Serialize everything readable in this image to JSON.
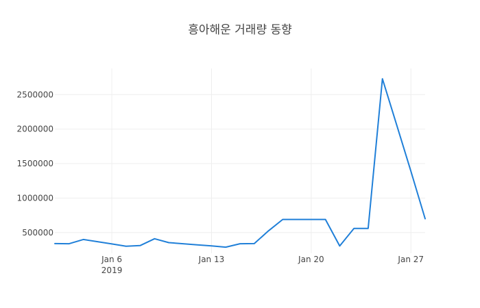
{
  "chart_data": {
    "type": "line",
    "title": "흥아해운 거래량 동향",
    "xlabel": "",
    "ylabel": "",
    "x_start": "2019-01-02",
    "x_end": "2019-01-28",
    "ylim": [
      200000,
      2880000
    ],
    "y_ticks": [
      500000,
      1000000,
      1500000,
      2000000,
      2500000
    ],
    "y_tick_labels": [
      "500000",
      "1000000",
      "1500000",
      "2000000",
      "2500000"
    ],
    "x_ticks": [
      {
        "date": "2019-01-06",
        "label": "Jan 6",
        "sublabel": "2019"
      },
      {
        "date": "2019-01-13",
        "label": "Jan 13",
        "sublabel": ""
      },
      {
        "date": "2019-01-20",
        "label": "Jan 20",
        "sublabel": ""
      },
      {
        "date": "2019-01-27",
        "label": "Jan 27",
        "sublabel": ""
      }
    ],
    "grid": true,
    "series": [
      {
        "color": "#1f7fd8",
        "points": [
          {
            "x": "2019-01-02",
            "y": 340000
          },
          {
            "x": "2019-01-03",
            "y": 338000
          },
          {
            "x": "2019-01-04",
            "y": 400000
          },
          {
            "x": "2019-01-05",
            "y": 368000
          },
          {
            "x": "2019-01-06",
            "y": 335000
          },
          {
            "x": "2019-01-07",
            "y": 302000
          },
          {
            "x": "2019-01-08",
            "y": 312000
          },
          {
            "x": "2019-01-09",
            "y": 410000
          },
          {
            "x": "2019-01-10",
            "y": 354000
          },
          {
            "x": "2019-01-11",
            "y": 338000
          },
          {
            "x": "2019-01-12",
            "y": 322000
          },
          {
            "x": "2019-01-13",
            "y": 306000
          },
          {
            "x": "2019-01-14",
            "y": 288000
          },
          {
            "x": "2019-01-15",
            "y": 338000
          },
          {
            "x": "2019-01-16",
            "y": 340000
          },
          {
            "x": "2019-01-17",
            "y": 525000
          },
          {
            "x": "2019-01-18",
            "y": 690000
          },
          {
            "x": "2019-01-19",
            "y": 690000
          },
          {
            "x": "2019-01-20",
            "y": 690000
          },
          {
            "x": "2019-01-21",
            "y": 690000
          },
          {
            "x": "2019-01-22",
            "y": 305000
          },
          {
            "x": "2019-01-23",
            "y": 560000
          },
          {
            "x": "2019-01-24",
            "y": 560000
          },
          {
            "x": "2019-01-25",
            "y": 2730000
          },
          {
            "x": "2019-01-26",
            "y": 2060000
          },
          {
            "x": "2019-01-27",
            "y": 1390000
          },
          {
            "x": "2019-01-28",
            "y": 700000
          }
        ]
      }
    ]
  }
}
